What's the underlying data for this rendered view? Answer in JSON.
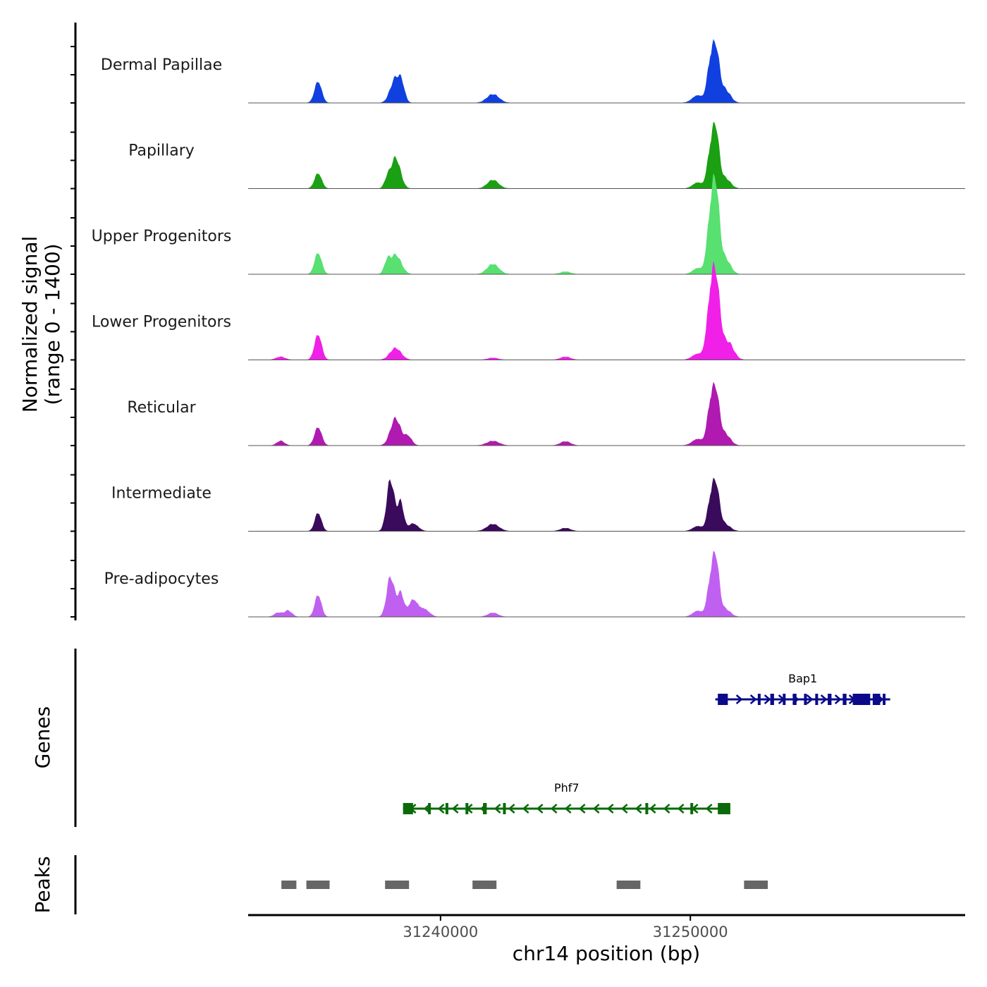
{
  "chart_data": {
    "type": "area",
    "title": "",
    "xlabel": "chr14 position (bp)",
    "ylabel_line1": "Normalized signal",
    "ylabel_line2": "(range 0 - 1400)",
    "ylim": [
      0,
      1400
    ],
    "xlim": [
      31232300,
      31261000
    ],
    "x_ticks": [
      31240000,
      31250000
    ],
    "x_tick_labels": [
      "31240000",
      "31250000"
    ],
    "panel_labels": {
      "genes": "Genes",
      "peaks": "Peaks"
    },
    "tracks": [
      {
        "name": "Dermal Papillae",
        "color": "#1040e0",
        "peaks": [
          {
            "pos": 31235100,
            "height": 420,
            "width": 140
          },
          {
            "pos": 31238200,
            "height": 480,
            "width": 200
          },
          {
            "pos": 31238450,
            "height": 250,
            "width": 120
          },
          {
            "pos": 31242100,
            "height": 170,
            "width": 240
          },
          {
            "pos": 31251000,
            "height": 1100,
            "width": 150
          },
          {
            "pos": 31250760,
            "height": 500,
            "width": 120
          },
          {
            "pos": 31251400,
            "height": 250,
            "width": 200
          },
          {
            "pos": 31250300,
            "height": 150,
            "width": 220
          }
        ]
      },
      {
        "name": "Papillary",
        "color": "#1aa012",
        "peaks": [
          {
            "pos": 31235100,
            "height": 300,
            "width": 140
          },
          {
            "pos": 31238200,
            "height": 600,
            "width": 190
          },
          {
            "pos": 31237860,
            "height": 150,
            "width": 110
          },
          {
            "pos": 31242100,
            "height": 170,
            "width": 220
          },
          {
            "pos": 31251000,
            "height": 1200,
            "width": 140
          },
          {
            "pos": 31250760,
            "height": 480,
            "width": 120
          },
          {
            "pos": 31251400,
            "height": 200,
            "width": 200
          },
          {
            "pos": 31250300,
            "height": 120,
            "width": 200
          }
        ]
      },
      {
        "name": "Upper Progenitors",
        "color": "#58e070",
        "peaks": [
          {
            "pos": 31235100,
            "height": 420,
            "width": 140
          },
          {
            "pos": 31238200,
            "height": 380,
            "width": 220
          },
          {
            "pos": 31237860,
            "height": 200,
            "width": 110
          },
          {
            "pos": 31242100,
            "height": 200,
            "width": 230
          },
          {
            "pos": 31251000,
            "height": 1750,
            "width": 150
          },
          {
            "pos": 31250760,
            "height": 700,
            "width": 130
          },
          {
            "pos": 31251400,
            "height": 300,
            "width": 200
          },
          {
            "pos": 31250300,
            "height": 120,
            "width": 200
          },
          {
            "pos": 31245000,
            "height": 50,
            "width": 200
          }
        ]
      },
      {
        "name": "Lower Progenitors",
        "color": "#f020e8",
        "peaks": [
          {
            "pos": 31235100,
            "height": 500,
            "width": 140
          },
          {
            "pos": 31233600,
            "height": 60,
            "width": 180
          },
          {
            "pos": 31238200,
            "height": 230,
            "width": 220
          },
          {
            "pos": 31242100,
            "height": 40,
            "width": 200
          },
          {
            "pos": 31245000,
            "height": 60,
            "width": 200
          },
          {
            "pos": 31251000,
            "height": 1650,
            "width": 170
          },
          {
            "pos": 31250760,
            "height": 650,
            "width": 140
          },
          {
            "pos": 31251500,
            "height": 350,
            "width": 220
          },
          {
            "pos": 31250300,
            "height": 120,
            "width": 220
          }
        ]
      },
      {
        "name": "Reticular",
        "color": "#b01ab0",
        "peaks": [
          {
            "pos": 31235100,
            "height": 360,
            "width": 140
          },
          {
            "pos": 31233600,
            "height": 90,
            "width": 150
          },
          {
            "pos": 31238200,
            "height": 530,
            "width": 200
          },
          {
            "pos": 31238700,
            "height": 180,
            "width": 150
          },
          {
            "pos": 31242100,
            "height": 90,
            "width": 240
          },
          {
            "pos": 31245000,
            "height": 80,
            "width": 200
          },
          {
            "pos": 31251000,
            "height": 1100,
            "width": 150
          },
          {
            "pos": 31250760,
            "height": 500,
            "width": 120
          },
          {
            "pos": 31251400,
            "height": 220,
            "width": 200
          },
          {
            "pos": 31250300,
            "height": 130,
            "width": 220
          }
        ]
      },
      {
        "name": "Intermediate",
        "color": "#3a0a5c",
        "peaks": [
          {
            "pos": 31235100,
            "height": 360,
            "width": 130
          },
          {
            "pos": 31238000,
            "height": 1000,
            "width": 150
          },
          {
            "pos": 31238400,
            "height": 560,
            "width": 120
          },
          {
            "pos": 31238900,
            "height": 150,
            "width": 200
          },
          {
            "pos": 31242100,
            "height": 140,
            "width": 240
          },
          {
            "pos": 31245000,
            "height": 60,
            "width": 200
          },
          {
            "pos": 31251000,
            "height": 960,
            "width": 150
          },
          {
            "pos": 31250760,
            "height": 350,
            "width": 120
          },
          {
            "pos": 31251400,
            "height": 130,
            "width": 200
          },
          {
            "pos": 31250300,
            "height": 100,
            "width": 200
          }
        ]
      },
      {
        "name": "Pre-adipocytes",
        "color": "#c060f0",
        "peaks": [
          {
            "pos": 31235100,
            "height": 430,
            "width": 130
          },
          {
            "pos": 31233500,
            "height": 80,
            "width": 150
          },
          {
            "pos": 31233900,
            "height": 120,
            "width": 150
          },
          {
            "pos": 31238000,
            "height": 780,
            "width": 150
          },
          {
            "pos": 31238400,
            "height": 460,
            "width": 130
          },
          {
            "pos": 31238900,
            "height": 330,
            "width": 180
          },
          {
            "pos": 31239350,
            "height": 150,
            "width": 200
          },
          {
            "pos": 31242100,
            "height": 80,
            "width": 200
          },
          {
            "pos": 31251000,
            "height": 1200,
            "width": 140
          },
          {
            "pos": 31250760,
            "height": 450,
            "width": 120
          },
          {
            "pos": 31251400,
            "height": 150,
            "width": 200
          },
          {
            "pos": 31250300,
            "height": 120,
            "width": 200
          }
        ]
      }
    ],
    "genes": [
      {
        "name": "Bap1",
        "start": 31251000,
        "end": 31258000,
        "strand": "+",
        "color": "#0a0a8a",
        "exons": [
          [
            31251100,
            31251500
          ],
          [
            31252700,
            31252800
          ],
          [
            31253200,
            31253350
          ],
          [
            31253700,
            31253800
          ],
          [
            31254100,
            31254250
          ],
          [
            31254550,
            31254650
          ],
          [
            31255000,
            31255100
          ],
          [
            31255500,
            31255650
          ],
          [
            31256100,
            31256250
          ],
          [
            31256500,
            31257200
          ],
          [
            31257300,
            31257600
          ],
          [
            31257700,
            31257800
          ]
        ]
      },
      {
        "name": "Phf7",
        "start": 31238500,
        "end": 31251600,
        "strand": "-",
        "color": "#0a6a0a",
        "exons": [
          [
            31238500,
            31238900
          ],
          [
            31239500,
            31239600
          ],
          [
            31240200,
            31240300
          ],
          [
            31241000,
            31241100
          ],
          [
            31241700,
            31241850
          ],
          [
            31242500,
            31242600
          ],
          [
            31248200,
            31248300
          ],
          [
            31250000,
            31250100
          ],
          [
            31251100,
            31251600
          ]
        ]
      }
    ],
    "peaks": [
      {
        "start": 31233630,
        "end": 31234230
      },
      {
        "start": 31234630,
        "end": 31235560
      },
      {
        "start": 31237780,
        "end": 31238740
      },
      {
        "start": 31241280,
        "end": 31242240
      },
      {
        "start": 31247050,
        "end": 31248000
      },
      {
        "start": 31252150,
        "end": 31253100
      }
    ]
  }
}
